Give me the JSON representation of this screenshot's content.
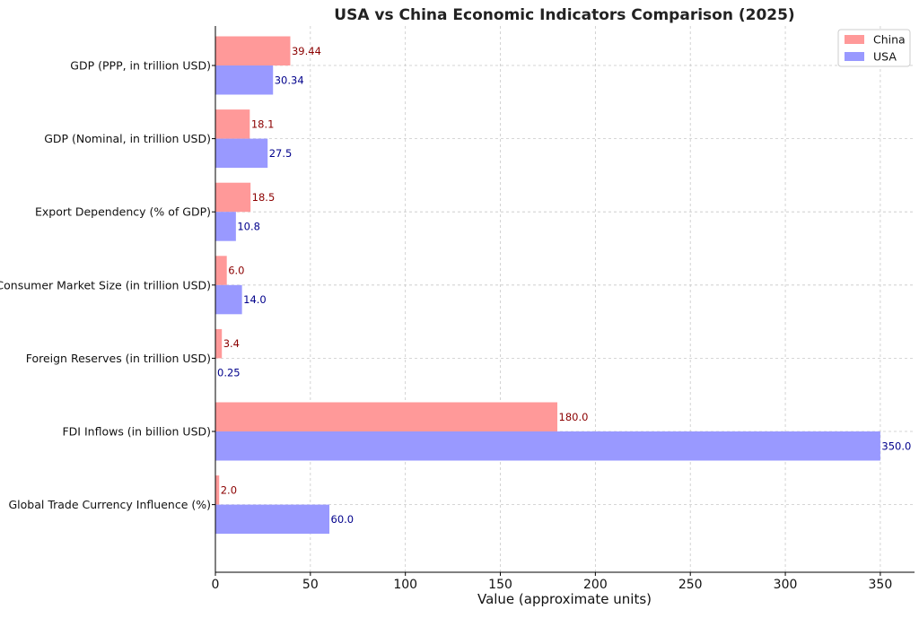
{
  "chart_data": {
    "type": "bar",
    "orientation": "horizontal",
    "title": "USA vs China Economic Indicators Comparison (2025)",
    "xlabel": "Value (approximate units)",
    "ylabel": "",
    "xlim": [
      0,
      368
    ],
    "xticks": [
      0,
      50,
      100,
      150,
      200,
      250,
      300,
      350
    ],
    "grid": true,
    "legend_position": "top-right",
    "categories": [
      "GDP (PPP, in trillion USD)",
      "GDP (Nominal, in trillion USD)",
      "Export Dependency (% of GDP)",
      "Consumer Market Size (in trillion USD)",
      "Foreign Reserves (in trillion USD)",
      "FDI Inflows (in billion USD)",
      "Global Trade Currency Influence (%)"
    ],
    "series": [
      {
        "name": "China",
        "color": "#ff9999",
        "label_color": "#8b0000",
        "values": [
          39.44,
          18.1,
          18.5,
          6.0,
          3.4,
          180.0,
          2.0
        ],
        "labels": [
          "39.44",
          "18.1",
          "18.5",
          "6.0",
          "3.4",
          "180.0",
          "2.0"
        ]
      },
      {
        "name": "USA",
        "color": "#9999ff",
        "label_color": "#00008b",
        "values": [
          30.34,
          27.5,
          10.8,
          14.0,
          0.25,
          350.0,
          60.0
        ],
        "labels": [
          "30.34",
          "27.5",
          "10.8",
          "14.0",
          "0.25",
          "350.0",
          "60.0"
        ]
      }
    ]
  }
}
